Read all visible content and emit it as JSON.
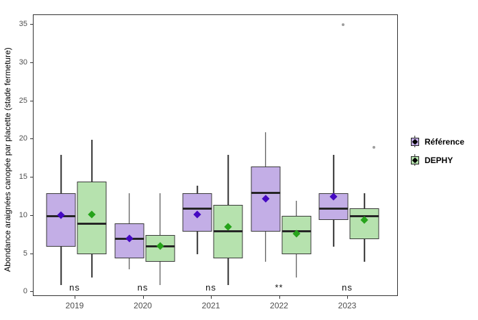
{
  "figure": {
    "y_axis_title": "Abondance araignées canopée par placette (stade fermeture)",
    "background_color": "#ffffff",
    "panel_border_color": "#2f2f2f",
    "tick_label_color": "#4d4d4d"
  },
  "chart_data": {
    "type": "boxplot",
    "title": "",
    "xlabel": "",
    "ylabel": "Abondance araignées canopée par placette (stade fermeture)",
    "categories": [
      "2019",
      "2020",
      "2021",
      "2022",
      "2023"
    ],
    "significance_labels": [
      "ns",
      "ns",
      "ns",
      "**",
      "ns"
    ],
    "y_ticks": [
      0,
      5,
      10,
      15,
      20,
      25,
      30,
      35
    ],
    "ylim": [
      0,
      35
    ],
    "grid": "off",
    "legend_position": "right",
    "series": [
      {
        "name": "Référence",
        "fill_color": "#c3aee6",
        "mean_marker_color": "#4509c2",
        "boxes": [
          {
            "category": "2019",
            "whisker_low": 1,
            "q1": 6,
            "median": 10,
            "q3": 13,
            "whisker_high": 18,
            "mean": 10.1,
            "outliers": []
          },
          {
            "category": "2020",
            "whisker_low": 3,
            "q1": 4.5,
            "median": 7,
            "q3": 9,
            "whisker_high": 13,
            "mean": 7.1,
            "outliers": []
          },
          {
            "category": "2021",
            "whisker_low": 5,
            "q1": 8,
            "median": 11,
            "q3": 13,
            "whisker_high": 14,
            "mean": 10.2,
            "outliers": []
          },
          {
            "category": "2022",
            "whisker_low": 4,
            "q1": 8,
            "median": 13,
            "q3": 16.5,
            "whisker_high": 21,
            "mean": 12.3,
            "outliers": []
          },
          {
            "category": "2023",
            "whisker_low": 6,
            "q1": 9.5,
            "median": 11,
            "q3": 13,
            "whisker_high": 18,
            "mean": 12.5,
            "outliers": [
              35
            ]
          }
        ]
      },
      {
        "name": "DEPHY",
        "fill_color": "#b6e2ae",
        "mean_marker_color": "#26a31b",
        "boxes": [
          {
            "category": "2019",
            "whisker_low": 2,
            "q1": 5,
            "median": 9,
            "q3": 14.5,
            "whisker_high": 20,
            "mean": 10.2,
            "outliers": []
          },
          {
            "category": "2020",
            "whisker_low": 1,
            "q1": 4,
            "median": 6,
            "q3": 7.5,
            "whisker_high": 13,
            "mean": 6.1,
            "outliers": []
          },
          {
            "category": "2021",
            "whisker_low": 1,
            "q1": 4.5,
            "median": 8,
            "q3": 11.5,
            "whisker_high": 18,
            "mean": 8.6,
            "outliers": []
          },
          {
            "category": "2022",
            "whisker_low": 2,
            "q1": 5,
            "median": 8,
            "q3": 10,
            "whisker_high": 12,
            "mean": 7.7,
            "outliers": []
          },
          {
            "category": "2023",
            "whisker_low": 4,
            "q1": 7,
            "median": 10,
            "q3": 11,
            "whisker_high": 13,
            "mean": 9.5,
            "outliers": [
              19
            ]
          }
        ]
      }
    ]
  },
  "legend": {
    "items": [
      {
        "label": "Référence",
        "fill_color": "#c3aee6"
      },
      {
        "label": "DEPHY",
        "fill_color": "#b6e2ae"
      }
    ]
  }
}
